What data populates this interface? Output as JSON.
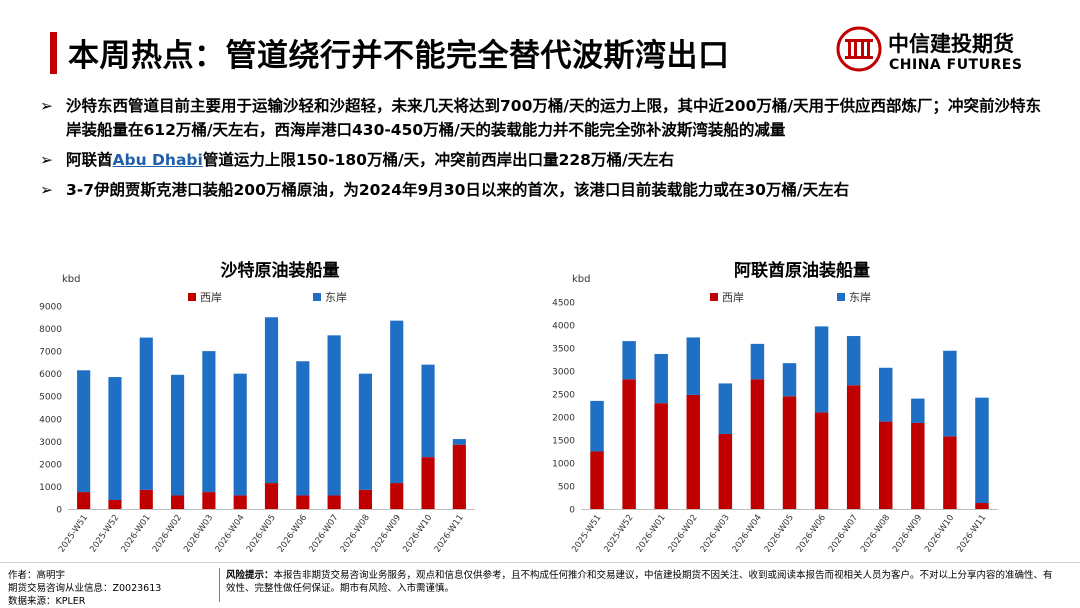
{
  "title": "本周热点：管道绕行并不能完全替代波斯湾出口",
  "logo": {
    "cn": "中信建投期货",
    "en": "CHINA FUTURES"
  },
  "bullets": [
    {
      "text": "沙特东西管道目前主要用于运输沙轻和沙超轻，未来几天将达到700万桶/天的运力上限，其中近200万桶/天用于供应西部炼厂；冲突前沙特东岸装船量在612万桶/天左右，西海岸港口430-450万桶/天的装载能力并不能完全弥补波斯湾装船的减量"
    },
    {
      "pre": "阿联酋",
      "link": "Abu Dhabi",
      "post": "管道运力上限150-180万桶/天，冲突前西岸出口量228万桶/天左右"
    },
    {
      "text": "3-7伊朗贾斯克港口装船200万桶原油，为2024年9月30日以来的首次，该港口目前装载能力或在30万桶/天左右"
    }
  ],
  "chart_data": [
    {
      "type": "bar",
      "stacked": true,
      "title": "沙特原油装船量",
      "ylabel": "kbd",
      "ylim": [
        0,
        9000
      ],
      "yticks": [
        0,
        1000,
        2000,
        3000,
        4000,
        5000,
        6000,
        7000,
        8000,
        9000
      ],
      "categories": [
        "2025-W51",
        "2025-W52",
        "2026-W01",
        "2026-W02",
        "2026-W03",
        "2026-W04",
        "2026-W05",
        "2026-W06",
        "2026-W07",
        "2026-W08",
        "2026-W09",
        "2026-W10",
        "2026-W11"
      ],
      "series": [
        {
          "name": "西岸",
          "color": "#c00000",
          "values": [
            750,
            400,
            850,
            600,
            750,
            600,
            1150,
            600,
            600,
            850,
            1150,
            2300,
            2850
          ]
        },
        {
          "name": "东岸",
          "color": "#1f6fc5",
          "values": [
            5400,
            5450,
            6750,
            5350,
            6250,
            5400,
            7350,
            5950,
            7100,
            5150,
            7200,
            4100,
            250
          ]
        }
      ]
    },
    {
      "type": "bar",
      "stacked": true,
      "title": "阿联酋原油装船量",
      "ylabel": "kbd",
      "ylim": [
        0,
        4500
      ],
      "yticks": [
        0,
        500,
        1000,
        1500,
        2000,
        2500,
        3000,
        3500,
        4000,
        4500
      ],
      "categories": [
        "2025-W51",
        "2025-W52",
        "2026-W01",
        "2026-W02",
        "2026-W03",
        "2026-W04",
        "2026-W05",
        "2026-W06",
        "2026-W07",
        "2026-W08",
        "2026-W09",
        "2026-W10",
        "2026-W11"
      ],
      "series": [
        {
          "name": "西岸",
          "color": "#c00000",
          "values": [
            1250,
            2820,
            2300,
            2480,
            1630,
            2820,
            2450,
            2100,
            2690,
            1900,
            1870,
            1580,
            130
          ]
        },
        {
          "name": "东岸",
          "color": "#1f6fc5",
          "values": [
            1100,
            830,
            1070,
            1250,
            1100,
            770,
            720,
            1870,
            1070,
            1170,
            530,
            1860,
            2290
          ]
        }
      ]
    }
  ],
  "footer": {
    "author": "作者：高明宇",
    "license": "期货交易咨询从业信息：Z0023613",
    "source": "数据来源：KPLER",
    "risk_label": "风险提示：",
    "risk_text": "本报告非期货交易咨询业务服务，观点和信息仅供参考，且不构成任何推介和交易建议，中信建投期货不因关注、收到或阅读本报告而视相关人员为客户。不对以上分享内容的准确性、有效性、完整性做任何保证。期市有风险、入市需谨慎。"
  }
}
